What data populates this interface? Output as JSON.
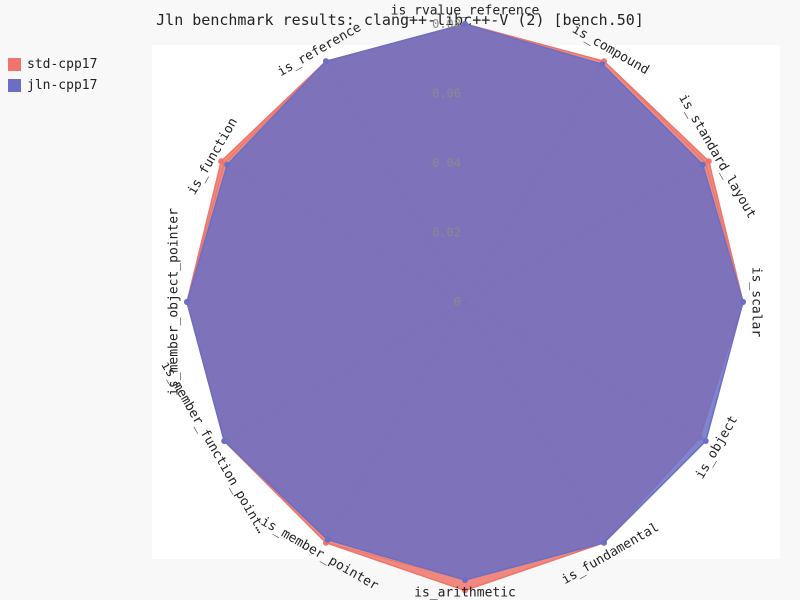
{
  "chart_data": {
    "type": "radar",
    "title": "Jln benchmark results: clang++-libc++-V (2) [bench.50]",
    "categories": [
      "is_rvalue_reference",
      "is_compound",
      "is_standard_layout",
      "is_scalar",
      "is_object",
      "is_fundamental",
      "is_arithmetic",
      "is_member_pointer",
      "is_member_function_point…",
      "is_member_object_pointer",
      "is_function",
      "is_reference"
    ],
    "radial_ticks": [
      "0",
      "0.02",
      "0.04",
      "0.06",
      "0.08"
    ],
    "rmax": 0.08,
    "grid": true,
    "legend_position": "top-left",
    "series": [
      {
        "name": "std-cpp17",
        "color": "#f0746a",
        "values": [
          0.08,
          0.08,
          0.081,
          0.08,
          0.078,
          0.08,
          0.083,
          0.08,
          0.08,
          0.08,
          0.081,
          0.08
        ]
      },
      {
        "name": "jln-cpp17",
        "color": "#6a6fc5",
        "values": [
          0.08,
          0.079,
          0.079,
          0.08,
          0.08,
          0.08,
          0.08,
          0.079,
          0.08,
          0.08,
          0.079,
          0.08
        ]
      }
    ]
  }
}
